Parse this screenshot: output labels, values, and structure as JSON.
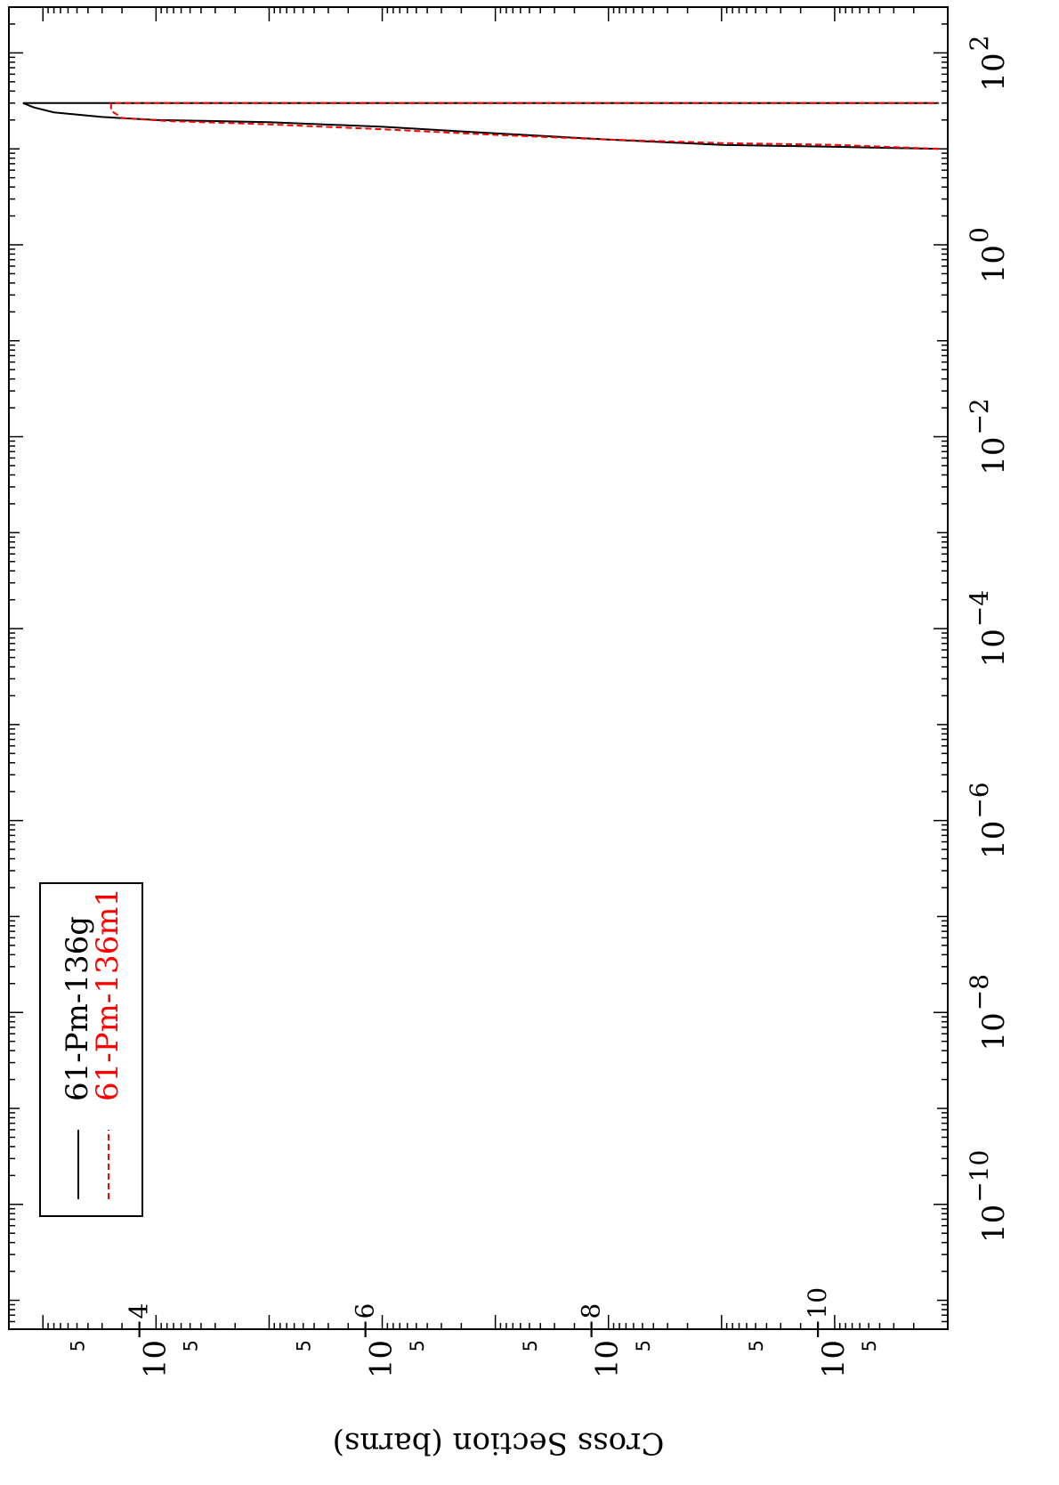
{
  "chart_data": {
    "type": "line",
    "orientation": "rotated-90-clockwise",
    "title": "",
    "ylabel": "Cross Section (barns)",
    "xlabel": "",
    "x_scale": "log",
    "y_scale": "log",
    "xlim": [
      5e-12,
      300
    ],
    "ylim": [
      1e-11,
      0.002
    ],
    "x_ticks": [
      {
        "base": "10",
        "exp": "−10"
      },
      {
        "base": "10",
        "exp": "−8"
      },
      {
        "base": "10",
        "exp": "−6"
      },
      {
        "base": "10",
        "exp": "−4"
      },
      {
        "base": "10",
        "exp": "−2"
      },
      {
        "base": "10",
        "exp": "0"
      },
      {
        "base": "10",
        "exp": "2"
      }
    ],
    "x_tick_values": [
      1e-10,
      1e-08,
      1e-06,
      0.0001,
      0.01,
      1,
      100
    ],
    "y_ticks": [
      {
        "base": "10",
        "exp": "−10"
      },
      {
        "base": "10",
        "exp": "−8"
      },
      {
        "base": "10",
        "exp": "−6"
      },
      {
        "base": "10",
        "exp": "−4"
      }
    ],
    "y_tick_values": [
      1e-10,
      1e-08,
      1e-06,
      0.0001
    ],
    "y_minor_label": "5",
    "y_minor_values": [
      5e-11,
      5e-10,
      5e-09,
      5e-08,
      5e-07,
      5e-06,
      5e-05,
      0.0005
    ],
    "legend_position": "bottom-left (rotated view)",
    "series": [
      {
        "name": "61-Pm-136g",
        "color": "#000000",
        "dash": "solid",
        "points": [
          {
            "x": 10.0,
            "y": 1.2e-11
          },
          {
            "x": 10.5,
            "y": 1e-10
          },
          {
            "x": 11.0,
            "y": 1e-09
          },
          {
            "x": 12.5,
            "y": 1e-08
          },
          {
            "x": 14.5,
            "y": 1e-07
          },
          {
            "x": 17.0,
            "y": 1e-06
          },
          {
            "x": 19.0,
            "y": 1e-05
          },
          {
            "x": 20.0,
            "y": 0.0001
          },
          {
            "x": 21.5,
            "y": 0.0003
          },
          {
            "x": 24.0,
            "y": 0.0008
          },
          {
            "x": 27.0,
            "y": 0.0012
          },
          {
            "x": 30.0,
            "y": 0.0015
          },
          {
            "x": 30.0,
            "y": 1.2e-11
          }
        ]
      },
      {
        "name": "61-Pm-136m1",
        "color": "#ff0000",
        "dash": "dashed",
        "points": [
          {
            "x": 10.0,
            "y": 1.2e-11
          },
          {
            "x": 11.0,
            "y": 1e-10
          },
          {
            "x": 11.5,
            "y": 1e-09
          },
          {
            "x": 12.5,
            "y": 1e-08
          },
          {
            "x": 14.0,
            "y": 1e-07
          },
          {
            "x": 16.0,
            "y": 1e-06
          },
          {
            "x": 18.0,
            "y": 1e-05
          },
          {
            "x": 19.5,
            "y": 8e-05
          },
          {
            "x": 21.0,
            "y": 0.0002
          },
          {
            "x": 25.0,
            "y": 0.00025
          },
          {
            "x": 30.0,
            "y": 0.00025
          },
          {
            "x": 30.0,
            "y": 1.2e-11
          }
        ]
      }
    ]
  }
}
